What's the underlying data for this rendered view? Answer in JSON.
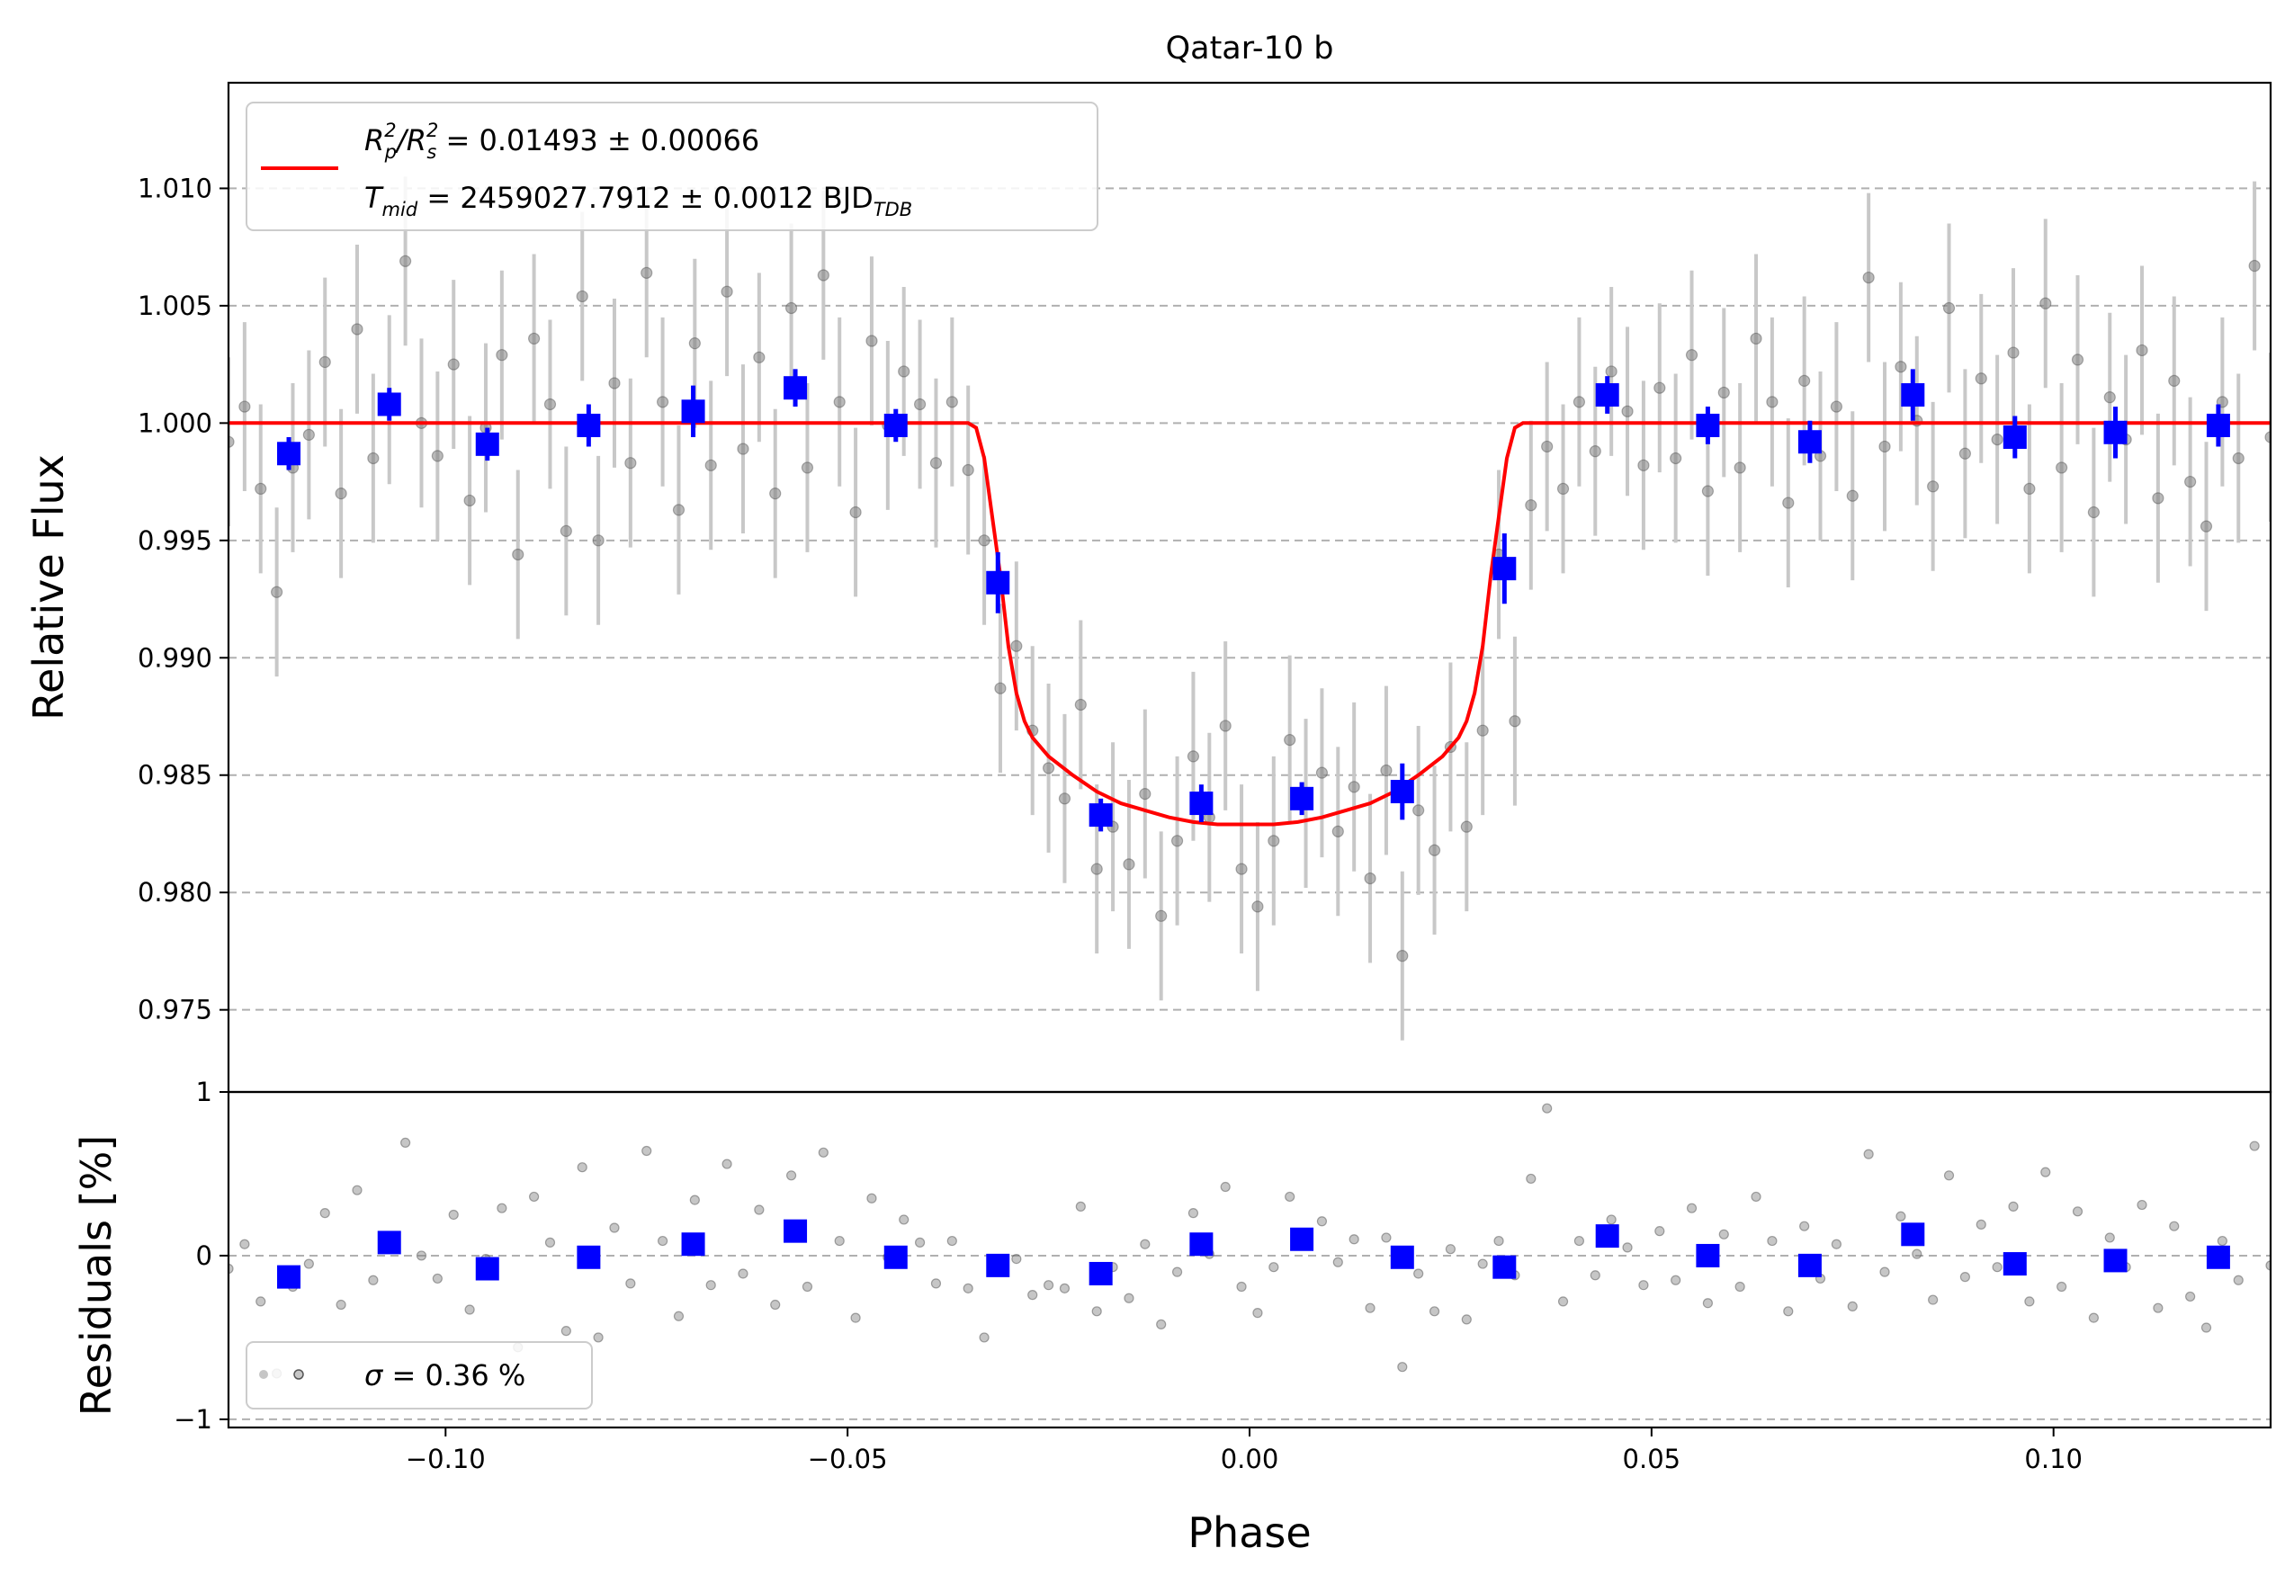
{
  "chart_data": [
    {
      "type": "scatter",
      "title": "Qatar-10 b",
      "xlabel": "",
      "ylabel": "Relative Flux",
      "xlim": [
        -0.127,
        0.127
      ],
      "ylim": [
        0.9715,
        1.0145
      ],
      "grid": "horizontal dashed",
      "x_ticks": [
        -0.1,
        -0.05,
        0.0,
        0.05,
        0.1
      ],
      "y_ticks": [
        0.975,
        0.98,
        0.985,
        0.99,
        0.995,
        1.0,
        1.005,
        1.01
      ],
      "y_tick_labels": [
        "0.975",
        "0.980",
        "0.985",
        "0.990",
        "0.995",
        "1.000",
        "1.005",
        "1.010"
      ],
      "legend": {
        "placement": "upper-left",
        "line1_a": "R",
        "line1_sub_p": "p",
        "line1_b": "/R",
        "line1_sub_s": "s",
        "sup": "2",
        "line1_value": " = 0.01493 ± 0.00066",
        "line2_a": "T",
        "line2_sub": "mid",
        "line2_value": " = 2459027.7912 ± 0.0012 BJD",
        "line2_unit_sub": "TDB",
        "color": "#ff0000"
      },
      "model": {
        "name": "transit model",
        "color": "#ff0000",
        "x": [
          -0.127,
          -0.035,
          -0.034,
          -0.033,
          -0.032,
          -0.031,
          -0.03,
          -0.029,
          -0.028,
          -0.027,
          -0.026,
          -0.025,
          -0.022,
          -0.019,
          -0.016,
          -0.013,
          -0.01,
          -0.007,
          -0.004,
          -0.001,
          0.0,
          0.003,
          0.006,
          0.009,
          0.012,
          0.015,
          0.018,
          0.021,
          0.024,
          0.025,
          0.026,
          0.027,
          0.028,
          0.029,
          0.03,
          0.031,
          0.032,
          0.033,
          0.034,
          0.035,
          0.127
        ],
        "y": [
          1.0,
          1.0,
          0.9998,
          0.9985,
          0.996,
          0.9935,
          0.9905,
          0.9885,
          0.9873,
          0.9866,
          0.9862,
          0.9858,
          0.985,
          0.9843,
          0.9838,
          0.9835,
          0.9832,
          0.983,
          0.9829,
          0.9829,
          0.9829,
          0.9829,
          0.983,
          0.9832,
          0.9835,
          0.9838,
          0.9843,
          0.985,
          0.9858,
          0.9862,
          0.9866,
          0.9873,
          0.9885,
          0.9905,
          0.9935,
          0.996,
          0.9985,
          0.9998,
          1.0,
          1.0,
          1.0
        ]
      },
      "binned": {
        "name": "binned data",
        "color": "#0000ff",
        "x": [
          -0.1195,
          -0.107,
          -0.0948,
          -0.0822,
          -0.0692,
          -0.0565,
          -0.044,
          -0.0313,
          -0.0185,
          -0.006,
          0.0065,
          0.019,
          0.0317,
          0.0445,
          0.057,
          0.0697,
          0.0825,
          0.0952,
          0.1077,
          0.1205
        ],
        "y": [
          0.9987,
          1.0008,
          0.9991,
          0.9999,
          1.0005,
          1.0015,
          0.9999,
          0.9932,
          0.9833,
          0.9838,
          0.984,
          0.9843,
          0.9938,
          1.0012,
          0.9999,
          0.9992,
          1.0012,
          0.9994,
          0.9996,
          0.9999
        ],
        "err": [
          0.0007,
          0.0007,
          0.0007,
          0.0009,
          0.0011,
          0.0008,
          0.0007,
          0.0013,
          0.0007,
          0.0008,
          0.0007,
          0.0012,
          0.0015,
          0.0008,
          0.0008,
          0.0009,
          0.0011,
          0.0009,
          0.0011,
          0.0009
        ]
      },
      "raw": {
        "name": "unbinned data",
        "color": "#808080",
        "errorbar_color": "#c8c8c8",
        "typical_err": 0.0036,
        "x": [
          -0.127,
          -0.125,
          -0.123,
          -0.121,
          -0.119,
          -0.117,
          -0.115,
          -0.113,
          -0.111,
          -0.109,
          -0.107,
          -0.105,
          -0.103,
          -0.101,
          -0.099,
          -0.097,
          -0.095,
          -0.093,
          -0.091,
          -0.089,
          -0.087,
          -0.085,
          -0.083,
          -0.081,
          -0.079,
          -0.077,
          -0.075,
          -0.073,
          -0.071,
          -0.069,
          -0.067,
          -0.065,
          -0.063,
          -0.061,
          -0.059,
          -0.057,
          -0.055,
          -0.053,
          -0.051,
          -0.049,
          -0.047,
          -0.045,
          -0.043,
          -0.041,
          -0.039,
          -0.037,
          -0.035,
          -0.033,
          -0.031,
          -0.029,
          -0.027,
          -0.025,
          -0.023,
          -0.021,
          -0.019,
          -0.017,
          -0.015,
          -0.013,
          -0.011,
          -0.009,
          -0.007,
          -0.005,
          -0.003,
          -0.001,
          0.001,
          0.003,
          0.005,
          0.007,
          0.009,
          0.011,
          0.013,
          0.015,
          0.017,
          0.019,
          0.021,
          0.023,
          0.025,
          0.027,
          0.029,
          0.031,
          0.033,
          0.035,
          0.037,
          0.039,
          0.041,
          0.043,
          0.045,
          0.047,
          0.049,
          0.051,
          0.053,
          0.055,
          0.057,
          0.059,
          0.061,
          0.063,
          0.065,
          0.067,
          0.069,
          0.071,
          0.073,
          0.075,
          0.077,
          0.079,
          0.081,
          0.083,
          0.085,
          0.087,
          0.089,
          0.091,
          0.093,
          0.095,
          0.097,
          0.099,
          0.101,
          0.103,
          0.105,
          0.107,
          0.109,
          0.111,
          0.113,
          0.115,
          0.117,
          0.119,
          0.121,
          0.123,
          0.125,
          0.127
        ],
        "y": [
          0.9992,
          1.0007,
          0.9972,
          0.9928,
          0.9981,
          0.9995,
          1.0026,
          0.997,
          1.004,
          0.9985,
          1.001,
          1.0069,
          1.0,
          0.9986,
          1.0025,
          0.9967,
          0.9998,
          1.0029,
          0.9944,
          1.0036,
          1.0008,
          0.9954,
          1.0054,
          0.995,
          1.0017,
          0.9983,
          1.0064,
          1.0009,
          0.9963,
          1.0034,
          0.9982,
          1.0056,
          0.9989,
          1.0028,
          0.997,
          1.0049,
          0.9981,
          1.0063,
          1.0009,
          0.9962,
          1.0035,
          0.9999,
          1.0022,
          1.0008,
          0.9983,
          1.0009,
          0.998,
          0.995,
          0.9887,
          0.9905,
          0.9869,
          0.9853,
          0.984,
          0.988,
          0.981,
          0.9828,
          0.9812,
          0.9842,
          0.979,
          0.9822,
          0.9858,
          0.9832,
          0.9871,
          0.981,
          0.9794,
          0.9822,
          0.9865,
          0.9838,
          0.9851,
          0.9826,
          0.9845,
          0.9806,
          0.9852,
          0.9773,
          0.9835,
          0.9818,
          0.9862,
          0.9828,
          0.9869,
          0.9944,
          0.9873,
          0.9965,
          0.999,
          0.9972,
          1.0009,
          0.9988,
          1.0022,
          1.0005,
          0.9982,
          1.0015,
          0.9985,
          1.0029,
          0.9971,
          1.0013,
          0.9981,
          1.0036,
          1.0009,
          0.9966,
          1.0018,
          0.9986,
          1.0007,
          0.9969,
          1.0062,
          0.999,
          1.0024,
          1.0001,
          0.9973,
          1.0049,
          0.9987,
          1.0019,
          0.9993,
          1.003,
          0.9972,
          1.0051,
          0.9981,
          1.0027,
          0.9962,
          1.0011,
          0.9993,
          1.0031,
          0.9968,
          1.0018,
          0.9975,
          0.9956,
          1.0009,
          0.9985,
          1.0067,
          0.9994
        ]
      }
    },
    {
      "type": "scatter",
      "title": "",
      "xlabel": "Phase",
      "ylabel": "Residuals [%]",
      "xlim": [
        -0.127,
        0.127
      ],
      "ylim": [
        -1.05,
        1.0
      ],
      "grid": "horizontal dashed",
      "x_ticks": [
        -0.1,
        -0.05,
        0.0,
        0.05,
        0.1
      ],
      "x_tick_labels": [
        "−0.10",
        "−0.05",
        "0.00",
        "0.05",
        "0.10"
      ],
      "y_ticks": [
        -1,
        0,
        1
      ],
      "y_tick_labels": [
        "−1",
        "0",
        "1"
      ],
      "legend": {
        "placement": "lower-left",
        "label_a": "σ",
        "label_b": " = 0.36 %"
      },
      "binned": {
        "name": "binned residuals",
        "color": "#0000ff",
        "x": [
          -0.1195,
          -0.107,
          -0.0948,
          -0.0822,
          -0.0692,
          -0.0565,
          -0.044,
          -0.0313,
          -0.0185,
          -0.006,
          0.0065,
          0.019,
          0.0317,
          0.0445,
          0.057,
          0.0697,
          0.0825,
          0.0952,
          0.1077,
          0.1205
        ],
        "y": [
          -0.13,
          0.08,
          -0.08,
          -0.01,
          0.07,
          0.15,
          -0.01,
          -0.06,
          -0.11,
          0.07,
          0.1,
          -0.01,
          -0.07,
          0.12,
          0.0,
          -0.06,
          0.13,
          -0.05,
          -0.03,
          -0.01
        ]
      },
      "raw": {
        "name": "residuals",
        "color": "#808080",
        "x": [
          -0.127,
          -0.125,
          -0.123,
          -0.121,
          -0.119,
          -0.117,
          -0.115,
          -0.113,
          -0.111,
          -0.109,
          -0.107,
          -0.105,
          -0.103,
          -0.101,
          -0.099,
          -0.097,
          -0.095,
          -0.093,
          -0.091,
          -0.089,
          -0.087,
          -0.085,
          -0.083,
          -0.081,
          -0.079,
          -0.077,
          -0.075,
          -0.073,
          -0.071,
          -0.069,
          -0.067,
          -0.065,
          -0.063,
          -0.061,
          -0.059,
          -0.057,
          -0.055,
          -0.053,
          -0.051,
          -0.049,
          -0.047,
          -0.045,
          -0.043,
          -0.041,
          -0.039,
          -0.037,
          -0.035,
          -0.033,
          -0.031,
          -0.029,
          -0.027,
          -0.025,
          -0.023,
          -0.021,
          -0.019,
          -0.017,
          -0.015,
          -0.013,
          -0.011,
          -0.009,
          -0.007,
          -0.005,
          -0.003,
          -0.001,
          0.001,
          0.003,
          0.005,
          0.007,
          0.009,
          0.011,
          0.013,
          0.015,
          0.017,
          0.019,
          0.021,
          0.023,
          0.025,
          0.027,
          0.029,
          0.031,
          0.033,
          0.035,
          0.037,
          0.039,
          0.041,
          0.043,
          0.045,
          0.047,
          0.049,
          0.051,
          0.053,
          0.055,
          0.057,
          0.059,
          0.061,
          0.063,
          0.065,
          0.067,
          0.069,
          0.071,
          0.073,
          0.075,
          0.077,
          0.079,
          0.081,
          0.083,
          0.085,
          0.087,
          0.089,
          0.091,
          0.093,
          0.095,
          0.097,
          0.099,
          0.101,
          0.103,
          0.105,
          0.107,
          0.109,
          0.111,
          0.113,
          0.115,
          0.117,
          0.119,
          0.121,
          0.123,
          0.125,
          0.127
        ],
        "y": [
          -0.08,
          0.07,
          -0.28,
          -0.72,
          -0.19,
          -0.05,
          0.26,
          -0.3,
          0.4,
          -0.15,
          0.1,
          0.69,
          0.0,
          -0.14,
          0.25,
          -0.33,
          -0.02,
          0.29,
          -0.56,
          0.36,
          0.08,
          -0.46,
          0.54,
          -0.5,
          0.17,
          -0.17,
          0.64,
          0.09,
          -0.37,
          0.34,
          -0.18,
          0.56,
          -0.11,
          0.28,
          -0.3,
          0.49,
          -0.19,
          0.63,
          0.09,
          -0.38,
          0.35,
          -0.01,
          0.22,
          0.08,
          -0.17,
          0.09,
          -0.2,
          -0.5,
          -0.05,
          -0.02,
          -0.24,
          -0.18,
          -0.2,
          0.3,
          -0.34,
          -0.07,
          -0.26,
          0.07,
          -0.42,
          -0.1,
          0.26,
          0.01,
          0.42,
          -0.19,
          -0.35,
          -0.07,
          0.36,
          0.08,
          0.21,
          -0.04,
          0.1,
          -0.32,
          0.11,
          -0.68,
          -0.11,
          -0.34,
          0.04,
          -0.39,
          -0.05,
          0.09,
          -0.12,
          0.47,
          0.9,
          -0.28,
          0.09,
          -0.12,
          0.22,
          0.05,
          -0.18,
          0.15,
          -0.15,
          0.29,
          -0.29,
          0.13,
          -0.19,
          0.36,
          0.09,
          -0.34,
          0.18,
          -0.14,
          0.07,
          -0.31,
          0.62,
          -0.1,
          0.24,
          0.01,
          -0.27,
          0.49,
          -0.13,
          0.19,
          -0.07,
          0.3,
          -0.28,
          0.51,
          -0.19,
          0.27,
          -0.38,
          0.11,
          -0.07,
          0.31,
          -0.32,
          0.18,
          -0.25,
          -0.44,
          0.09,
          -0.15,
          0.67,
          -0.06
        ]
      }
    }
  ]
}
